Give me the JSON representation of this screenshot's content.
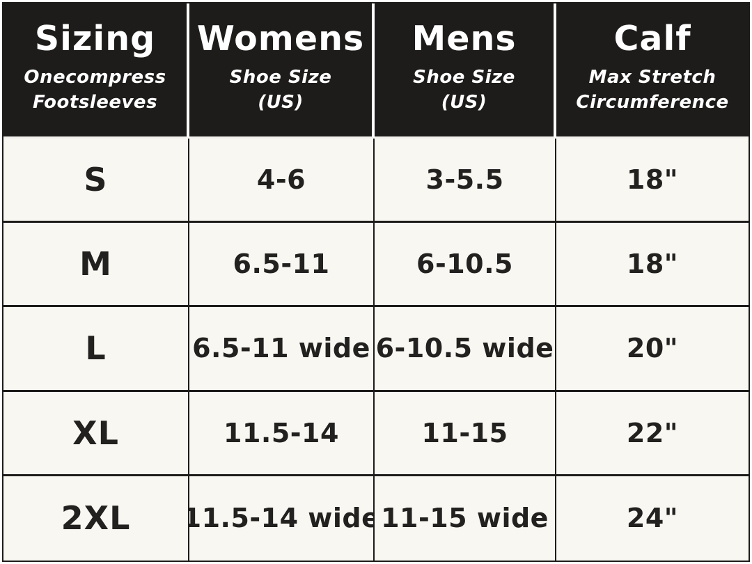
{
  "chart_data": {
    "type": "table",
    "title": "Sizing",
    "subtitle": "Onecompress Footsleeves",
    "columns": [
      {
        "title": "Sizing",
        "subtitle_line1": "Onecompress",
        "subtitle_line2": "Footsleeves"
      },
      {
        "title": "Womens",
        "subtitle_line1": "Shoe Size",
        "subtitle_line2": "(US)"
      },
      {
        "title": "Mens",
        "subtitle_line1": "Shoe Size",
        "subtitle_line2": "(US)"
      },
      {
        "title": "Calf",
        "subtitle_line1": "Max Stretch",
        "subtitle_line2": "Circumference"
      }
    ],
    "rows": [
      {
        "size": "S",
        "womens": "4-6",
        "mens": "3-5.5",
        "calf": "18\""
      },
      {
        "size": "M",
        "womens": "6.5-11",
        "mens": "6-10.5",
        "calf": "18\""
      },
      {
        "size": "L",
        "womens": "6.5-11 wide",
        "mens": "6-10.5 wide",
        "calf": "20\""
      },
      {
        "size": "XL",
        "womens": "11.5-14",
        "mens": "11-15",
        "calf": "22\""
      },
      {
        "size": "2XL",
        "womens": "11.5-14 wide",
        "mens": "11-15 wide",
        "calf": "24\""
      }
    ]
  },
  "colors": {
    "header_bg": "#1e1c1a",
    "header_text": "#ffffff",
    "body_bg": "#f8f7f2",
    "body_text": "#22211f",
    "border": "#1e1c1a"
  }
}
